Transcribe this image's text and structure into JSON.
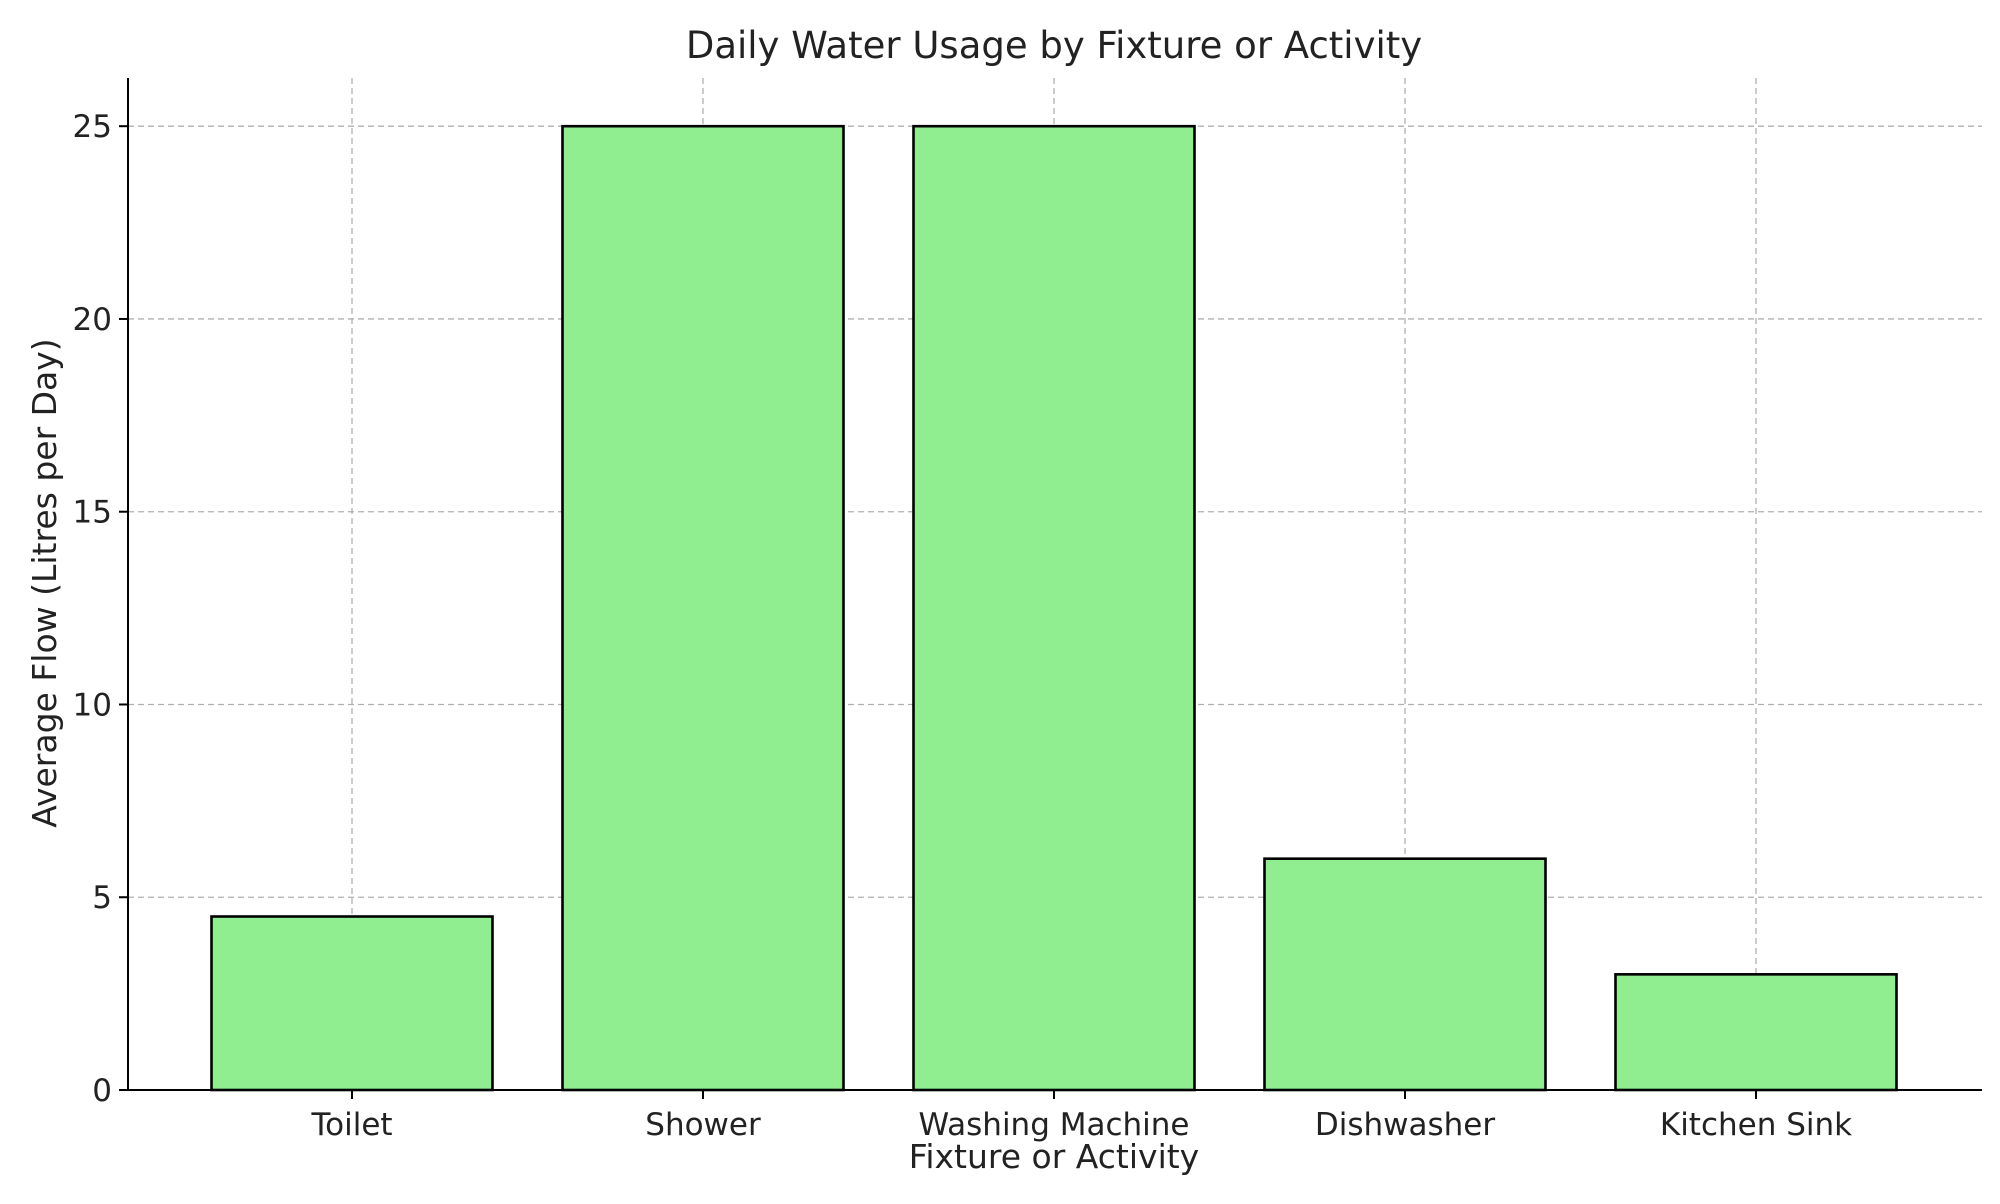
{
  "chart_data": {
    "type": "bar",
    "title": "Daily Water Usage by Fixture or Activity",
    "xlabel": "Fixture or Activity",
    "ylabel": "Average Flow (Litres per Day)",
    "categories": [
      "Toilet",
      "Shower",
      "Washing Machine",
      "Dishwasher",
      "Kitchen Sink"
    ],
    "values": [
      4.5,
      25,
      25,
      6,
      3
    ],
    "ylim": [
      0,
      26.25
    ],
    "yticks": [
      0,
      5,
      10,
      15,
      20,
      25
    ],
    "grid": true,
    "bar_color": "#90EE90",
    "edge_color": "#000000"
  }
}
